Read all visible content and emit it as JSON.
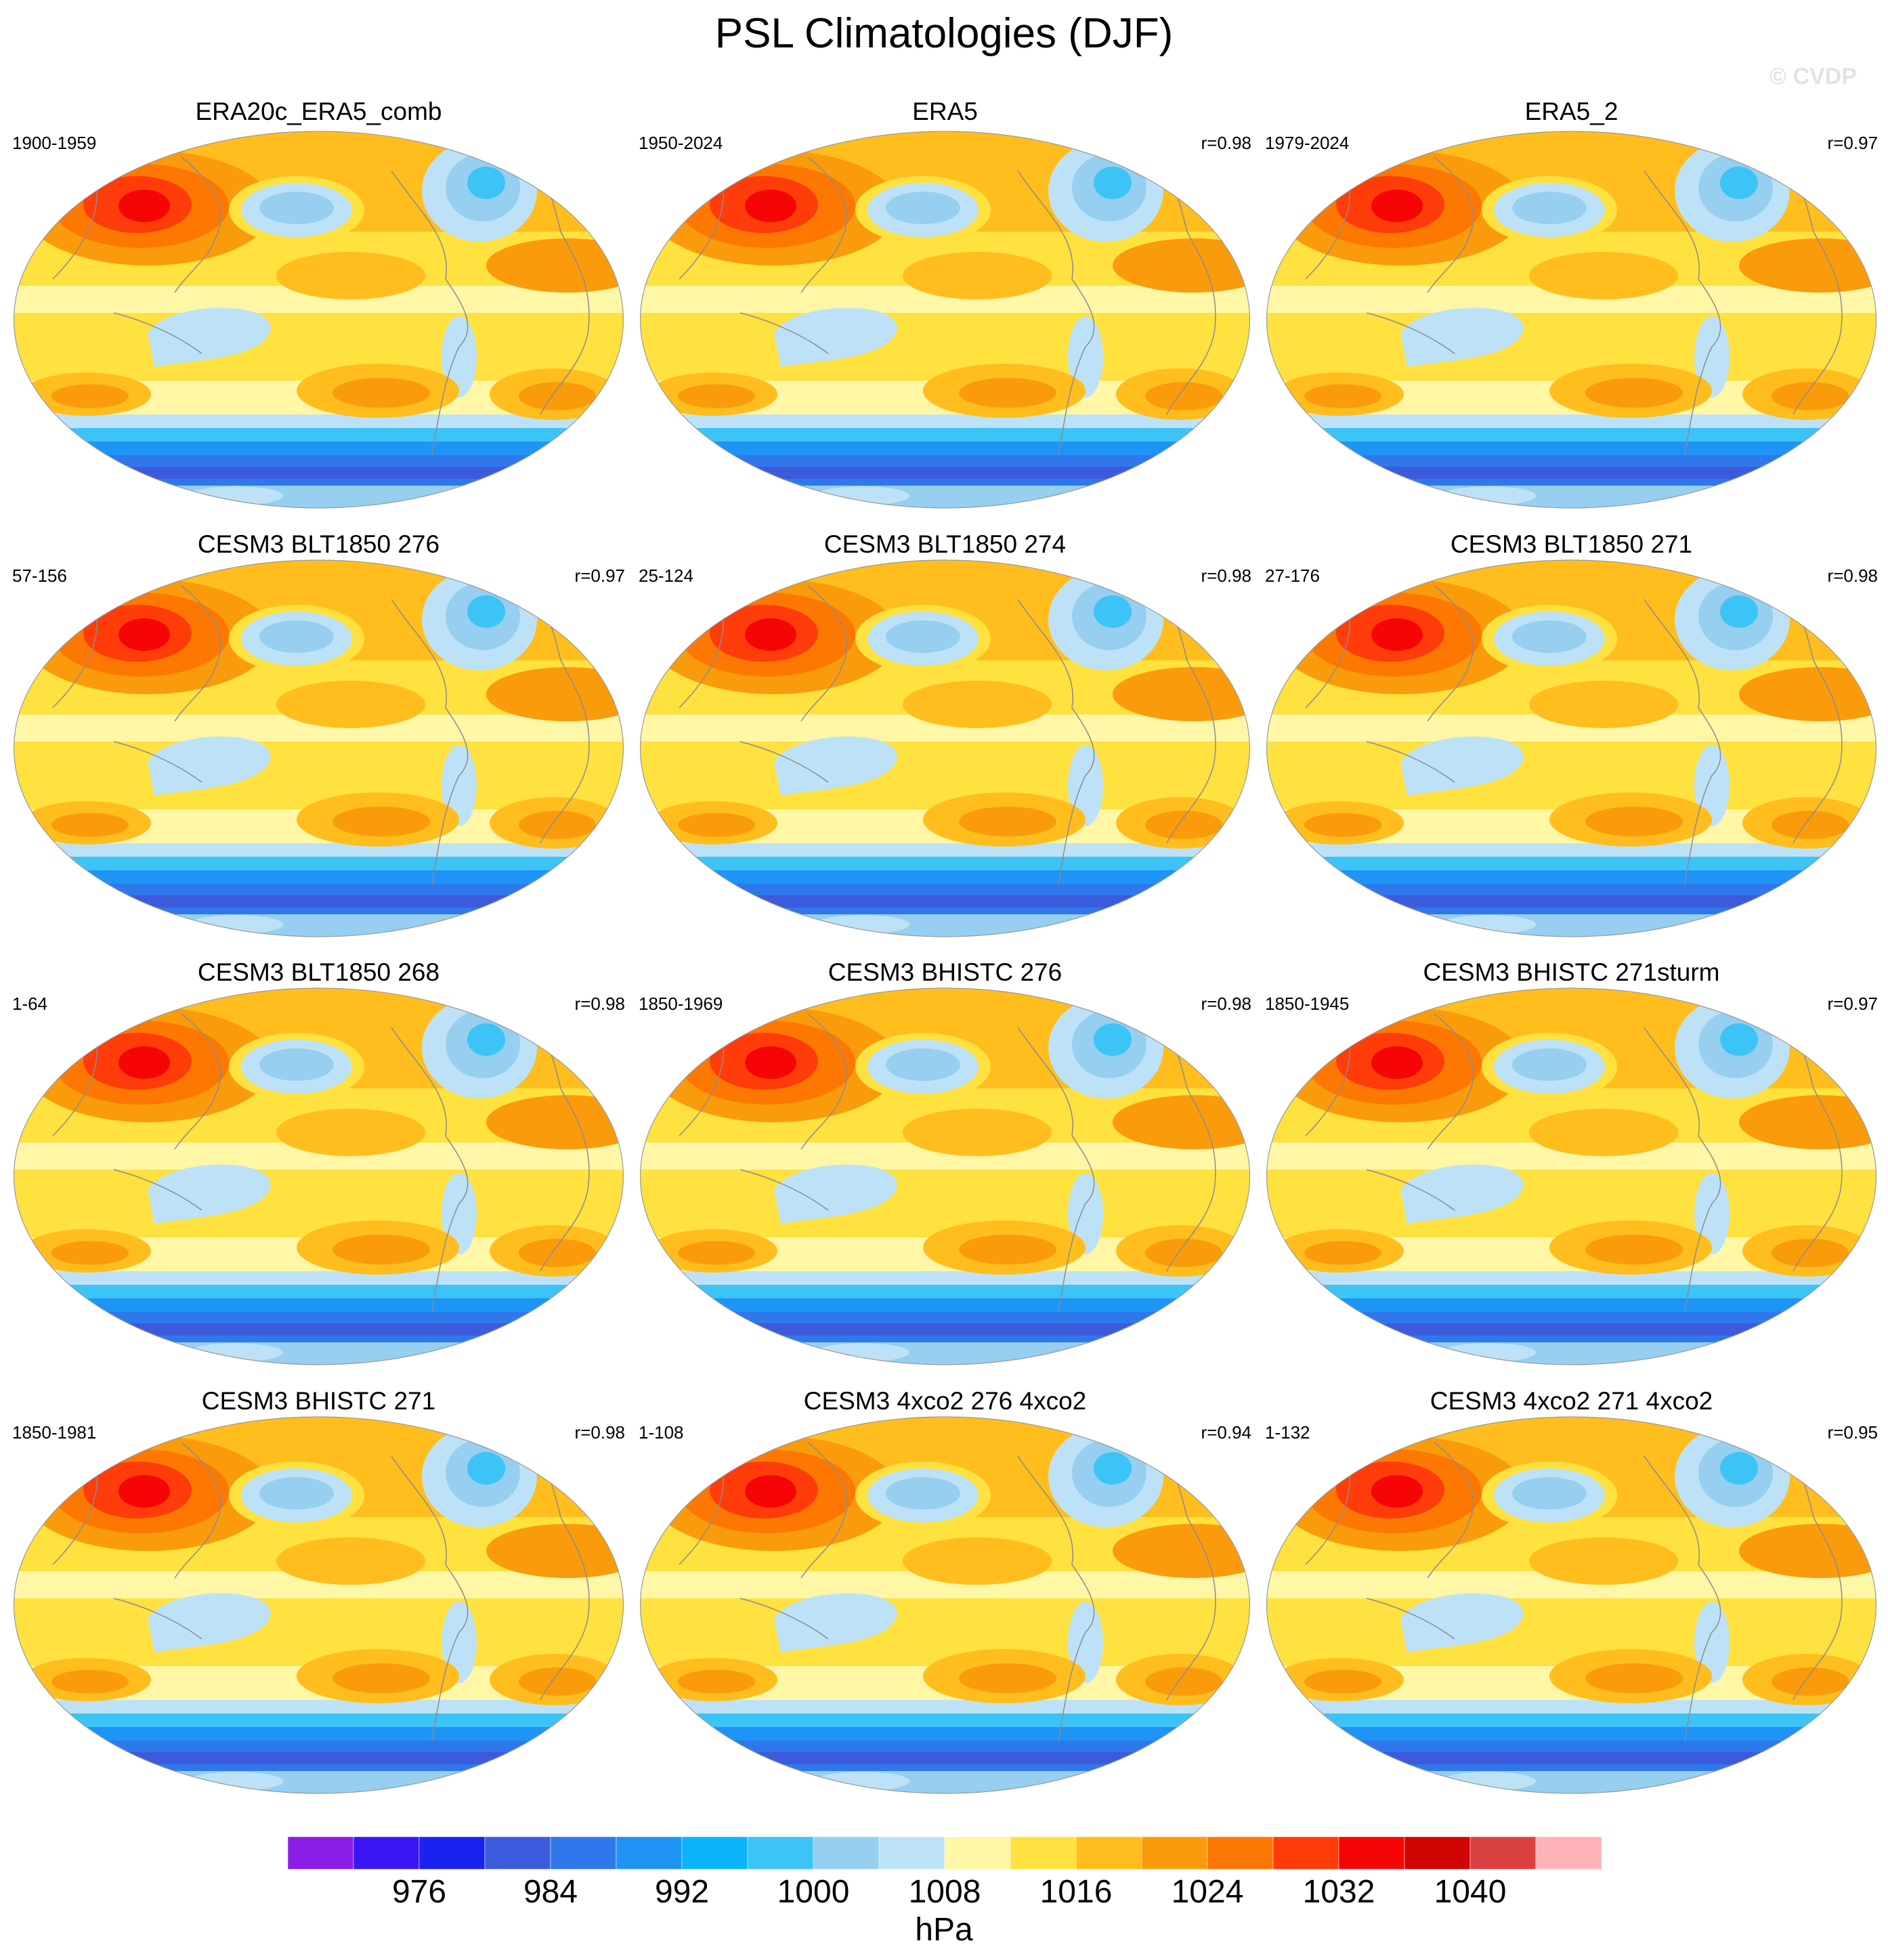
{
  "figure": {
    "title": "PSL Climatologies (DJF)",
    "watermark": "© CVDP",
    "units": "hPa"
  },
  "colors": {
    "ocean_high": "#f89b0c",
    "coast": "#8c8c8c"
  },
  "panels": [
    {
      "title": "ERA20c_ERA5_comb",
      "period": "1900-1959",
      "corr": ""
    },
    {
      "title": "ERA5",
      "period": "1950-2024",
      "corr": "r=0.98"
    },
    {
      "title": "ERA5_2",
      "period": "1979-2024",
      "corr": "r=0.97"
    },
    {
      "title": "CESM3 BLT1850 276",
      "period": "57-156",
      "corr": "r=0.97"
    },
    {
      "title": "CESM3 BLT1850 274",
      "period": "25-124",
      "corr": "r=0.98"
    },
    {
      "title": "CESM3 BLT1850 271",
      "period": "27-176",
      "corr": "r=0.98"
    },
    {
      "title": "CESM3 BLT1850 268",
      "period": "1-64",
      "corr": "r=0.98"
    },
    {
      "title": "CESM3 BHISTC 276",
      "period": "1850-1969",
      "corr": "r=0.98"
    },
    {
      "title": "CESM3 BHISTC 271sturm",
      "period": "1850-1945",
      "corr": "r=0.97"
    },
    {
      "title": "CESM3 BHISTC 271",
      "period": "1850-1981",
      "corr": "r=0.98"
    },
    {
      "title": "CESM3 4xco2 276 4xco2",
      "period": "1-108",
      "corr": "r=0.94"
    },
    {
      "title": "CESM3 4xco2 271 4xco2",
      "period": "1-132",
      "corr": "r=0.95"
    }
  ],
  "colorbar": {
    "colors": [
      "#8a1ee6",
      "#3a16f5",
      "#1a22f0",
      "#3c5bdc",
      "#2e78ec",
      "#1e94f6",
      "#0ab4fa",
      "#3cc4f6",
      "#96cff0",
      "#bde2f7",
      "#fff6a6",
      "#ffe140",
      "#ffbe1e",
      "#fa9b0c",
      "#fd7803",
      "#ff3c0a",
      "#f50505",
      "#d20505",
      "#dc4141",
      "#ffb4b9"
    ],
    "labels": [
      "976",
      "984",
      "992",
      "1000",
      "1008",
      "1016",
      "1024",
      "1032",
      "1040"
    ]
  }
}
